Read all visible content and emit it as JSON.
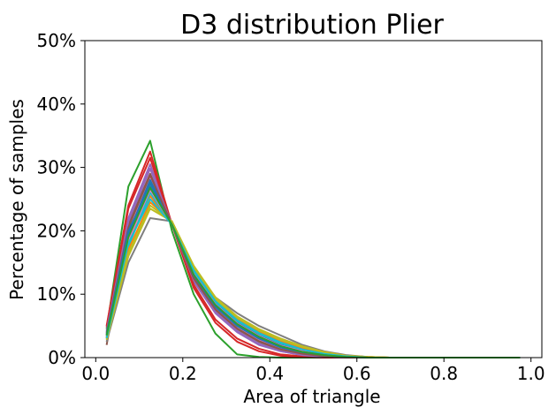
{
  "chart_data": {
    "type": "line",
    "title": "D3 distribution Plier",
    "xlabel": "Area of triangle",
    "ylabel": "Percentage of samples",
    "xlim": [
      -0.025,
      1.025
    ],
    "ylim": [
      0,
      50
    ],
    "xticks": [
      0.0,
      0.2,
      0.4,
      0.6,
      0.8,
      1.0
    ],
    "xtick_labels": [
      "0.0",
      "0.2",
      "0.4",
      "0.6",
      "0.8",
      "1.0"
    ],
    "yticks": [
      0,
      10,
      20,
      30,
      40,
      50
    ],
    "ytick_labels": [
      "0%",
      "10%",
      "20%",
      "30%",
      "40%",
      "50%"
    ],
    "grid": false,
    "legend": "none",
    "x": [
      0.025,
      0.075,
      0.125,
      0.175,
      0.225,
      0.275,
      0.325,
      0.375,
      0.425,
      0.475,
      0.525,
      0.575,
      0.625,
      0.675,
      0.725,
      0.775,
      0.825,
      0.875,
      0.925,
      0.975
    ],
    "series": [
      {
        "color": "#1f77b4",
        "values": [
          3.0,
          19.0,
          27.5,
          21.0,
          13.0,
          8.5,
          5.5,
          3.5,
          2.0,
          1.0,
          0.5,
          0.2,
          0,
          0,
          0,
          0,
          0,
          0,
          0,
          0
        ]
      },
      {
        "color": "#ff7f0e",
        "values": [
          3.5,
          18.0,
          25.5,
          21.0,
          13.5,
          9.0,
          6.0,
          4.0,
          2.5,
          1.5,
          0.7,
          0.3,
          0.1,
          0,
          0,
          0,
          0,
          0,
          0,
          0
        ]
      },
      {
        "color": "#2ca02c",
        "values": [
          4.5,
          27.0,
          34.2,
          20.0,
          10.0,
          3.8,
          0.5,
          0.1,
          0,
          0,
          0,
          0,
          0,
          0,
          0,
          0,
          0,
          0,
          0,
          0
        ]
      },
      {
        "color": "#d62728",
        "values": [
          5.0,
          24.0,
          32.5,
          21.0,
          11.0,
          5.5,
          2.5,
          1.0,
          0.3,
          0.1,
          0,
          0,
          0,
          0,
          0,
          0,
          0,
          0,
          0,
          0
        ]
      },
      {
        "color": "#9467bd",
        "values": [
          4.0,
          22.0,
          30.5,
          21.0,
          12.0,
          7.0,
          4.0,
          2.0,
          1.0,
          0.4,
          0.1,
          0,
          0,
          0,
          0,
          0,
          0,
          0,
          0,
          0
        ]
      },
      {
        "color": "#8c564b",
        "values": [
          2.0,
          21.0,
          29.0,
          21.0,
          12.5,
          7.5,
          4.5,
          2.5,
          1.2,
          0.5,
          0.2,
          0,
          0,
          0,
          0,
          0,
          0,
          0,
          0,
          0
        ]
      },
      {
        "color": "#e377c2",
        "values": [
          3.8,
          20.0,
          28.5,
          21.0,
          12.5,
          7.8,
          4.8,
          2.8,
          1.5,
          0.7,
          0.3,
          0.1,
          0,
          0,
          0,
          0,
          0,
          0,
          0,
          0
        ]
      },
      {
        "color": "#7f7f7f",
        "values": [
          2.5,
          15.0,
          22.0,
          21.5,
          14.0,
          9.5,
          7.0,
          5.0,
          3.5,
          2.0,
          1.0,
          0.4,
          0.1,
          0,
          0,
          0,
          0,
          0,
          0,
          0
        ]
      },
      {
        "color": "#bcbd22",
        "values": [
          2.8,
          16.0,
          23.5,
          21.5,
          14.5,
          9.5,
          6.5,
          4.5,
          3.0,
          1.8,
          0.9,
          0.3,
          0.1,
          0,
          0,
          0,
          0,
          0,
          0,
          0
        ]
      },
      {
        "color": "#17becf",
        "values": [
          3.2,
          17.5,
          26.0,
          21.0,
          13.5,
          8.8,
          5.8,
          3.8,
          2.3,
          1.2,
          0.6,
          0.2,
          0,
          0,
          0,
          0,
          0,
          0,
          0,
          0
        ]
      },
      {
        "color": "#1f77b4",
        "values": [
          3.6,
          19.5,
          28.0,
          21.0,
          12.8,
          8.0,
          5.0,
          3.0,
          1.6,
          0.8,
          0.3,
          0.1,
          0,
          0,
          0,
          0,
          0,
          0,
          0,
          0
        ]
      },
      {
        "color": "#ff7f0e",
        "values": [
          3.3,
          17.0,
          24.5,
          21.5,
          14.0,
          9.0,
          6.2,
          4.2,
          2.7,
          1.6,
          0.8,
          0.3,
          0.1,
          0,
          0,
          0,
          0,
          0,
          0,
          0
        ]
      },
      {
        "color": "#d62728",
        "values": [
          4.8,
          23.5,
          31.5,
          21.0,
          11.5,
          6.0,
          3.0,
          1.4,
          0.5,
          0.2,
          0,
          0,
          0,
          0,
          0,
          0,
          0,
          0,
          0,
          0
        ]
      },
      {
        "color": "#9467bd",
        "values": [
          4.2,
          21.5,
          29.8,
          21.0,
          12.2,
          7.2,
          4.2,
          2.2,
          1.0,
          0.4,
          0.1,
          0,
          0,
          0,
          0,
          0,
          0,
          0,
          0,
          0
        ]
      },
      {
        "color": "#8c564b",
        "values": [
          3.9,
          20.5,
          28.8,
          21.0,
          12.5,
          7.6,
          4.6,
          2.6,
          1.3,
          0.6,
          0.2,
          0,
          0,
          0,
          0,
          0,
          0,
          0,
          0,
          0
        ]
      },
      {
        "color": "#e377c2",
        "values": [
          3.4,
          18.5,
          26.5,
          21.0,
          13.2,
          8.4,
          5.4,
          3.4,
          1.9,
          1.0,
          0.4,
          0.1,
          0,
          0,
          0,
          0,
          0,
          0,
          0,
          0
        ]
      },
      {
        "color": "#bcbd22",
        "values": [
          3.0,
          16.5,
          24.0,
          21.5,
          14.2,
          9.2,
          6.3,
          4.3,
          2.8,
          1.7,
          0.8,
          0.3,
          0.1,
          0,
          0,
          0,
          0,
          0,
          0,
          0
        ]
      },
      {
        "color": "#17becf",
        "values": [
          3.1,
          18.0,
          25.0,
          21.0,
          13.8,
          8.9,
          5.9,
          3.9,
          2.4,
          1.3,
          0.6,
          0.2,
          0,
          0,
          0,
          0,
          0,
          0,
          0,
          0
        ]
      },
      {
        "color": "#1f77b4",
        "values": [
          3.7,
          20.0,
          27.0,
          21.0,
          13.0,
          8.2,
          5.2,
          3.2,
          1.8,
          0.9,
          0.4,
          0.1,
          0,
          0,
          0,
          0,
          0,
          0,
          0,
          0
        ]
      },
      {
        "color": "#2ca02c",
        "values": [
          3.5,
          19.0,
          26.8,
          21.0,
          13.1,
          8.3,
          5.3,
          3.3,
          1.8,
          0.9,
          0.4,
          0.1,
          0,
          0,
          0,
          0,
          0,
          0,
          0,
          0
        ]
      }
    ]
  }
}
